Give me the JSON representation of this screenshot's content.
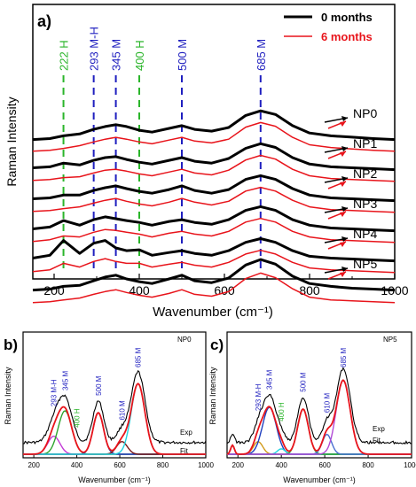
{
  "chart_data": [
    {
      "panel": "a)",
      "type": "line",
      "xlabel": "Wavenumber (cm⁻¹)",
      "ylabel": "Raman Intensity",
      "xlim": [
        150,
        1000
      ],
      "xticks": [
        200,
        400,
        600,
        800,
        1000
      ],
      "legend": {
        "position": "top-right",
        "entries": [
          {
            "name": "0 months",
            "color": "#000000"
          },
          {
            "name": "6 months",
            "color": "#e8141b"
          }
        ]
      },
      "peak_markers": [
        {
          "x": 222,
          "label": "222 H",
          "color": "#2bb52b"
        },
        {
          "x": 293,
          "label": "293 M-H",
          "color": "#1f1fbf"
        },
        {
          "x": 345,
          "label": "345 M",
          "color": "#1f1fbf"
        },
        {
          "x": 400,
          "label": "400 H",
          "color": "#2bb52b"
        },
        {
          "x": 500,
          "label": "500 M",
          "color": "#1f1fbf"
        },
        {
          "x": 685,
          "label": "685 M",
          "color": "#1f1fbf"
        }
      ],
      "samples": [
        "NP0",
        "NP1",
        "NP2",
        "NP3",
        "NP4",
        "NP5"
      ],
      "x": [
        150,
        190,
        222,
        260,
        293,
        320,
        345,
        370,
        400,
        430,
        470,
        500,
        530,
        570,
        610,
        650,
        685,
        720,
        760,
        800,
        850,
        900,
        950,
        1000
      ],
      "series": [
        {
          "sample": "NP0",
          "age": "0 months",
          "values": [
            0.2,
            0.22,
            0.28,
            0.32,
            0.42,
            0.48,
            0.52,
            0.48,
            0.4,
            0.36,
            0.44,
            0.5,
            0.42,
            0.38,
            0.46,
            0.72,
            0.82,
            0.74,
            0.5,
            0.34,
            0.28,
            0.25,
            0.22,
            0.2
          ]
        },
        {
          "sample": "NP0",
          "age": "6 months",
          "values": [
            0.1,
            0.12,
            0.16,
            0.22,
            0.3,
            0.36,
            0.4,
            0.36,
            0.3,
            0.26,
            0.34,
            0.4,
            0.32,
            0.28,
            0.36,
            0.62,
            0.72,
            0.64,
            0.4,
            0.24,
            0.18,
            0.15,
            0.12,
            0.1
          ]
        },
        {
          "sample": "NP1",
          "age": "0 months",
          "values": [
            0.24,
            0.26,
            0.34,
            0.3,
            0.4,
            0.46,
            0.48,
            0.42,
            0.36,
            0.32,
            0.4,
            0.46,
            0.38,
            0.34,
            0.44,
            0.66,
            0.76,
            0.68,
            0.46,
            0.32,
            0.26,
            0.24,
            0.22,
            0.2
          ]
        },
        {
          "sample": "NP1",
          "age": "6 months",
          "values": [
            0.12,
            0.14,
            0.18,
            0.2,
            0.28,
            0.34,
            0.36,
            0.32,
            0.26,
            0.22,
            0.3,
            0.36,
            0.28,
            0.24,
            0.34,
            0.56,
            0.66,
            0.58,
            0.36,
            0.22,
            0.16,
            0.14,
            0.12,
            0.1
          ]
        },
        {
          "sample": "NP2",
          "age": "0 months",
          "values": [
            0.22,
            0.24,
            0.3,
            0.3,
            0.4,
            0.46,
            0.5,
            0.44,
            0.38,
            0.34,
            0.42,
            0.5,
            0.4,
            0.34,
            0.42,
            0.64,
            0.72,
            0.64,
            0.44,
            0.3,
            0.24,
            0.22,
            0.2,
            0.18
          ]
        },
        {
          "sample": "NP2",
          "age": "6 months",
          "values": [
            0.1,
            0.12,
            0.16,
            0.2,
            0.28,
            0.34,
            0.38,
            0.32,
            0.26,
            0.22,
            0.3,
            0.38,
            0.3,
            0.24,
            0.32,
            0.54,
            0.62,
            0.54,
            0.34,
            0.2,
            0.14,
            0.12,
            0.1,
            0.08
          ]
        },
        {
          "sample": "NP3",
          "age": "0 months",
          "values": [
            0.22,
            0.26,
            0.4,
            0.3,
            0.42,
            0.48,
            0.44,
            0.4,
            0.36,
            0.3,
            0.38,
            0.42,
            0.36,
            0.32,
            0.42,
            0.62,
            0.7,
            0.62,
            0.42,
            0.3,
            0.24,
            0.22,
            0.2,
            0.18
          ]
        },
        {
          "sample": "NP3",
          "age": "6 months",
          "values": [
            0.1,
            0.14,
            0.22,
            0.2,
            0.3,
            0.36,
            0.34,
            0.3,
            0.26,
            0.2,
            0.28,
            0.32,
            0.26,
            0.22,
            0.32,
            0.52,
            0.6,
            0.52,
            0.32,
            0.2,
            0.14,
            0.12,
            0.1,
            0.08
          ]
        },
        {
          "sample": "NP4",
          "age": "0 months",
          "values": [
            0.24,
            0.3,
            0.62,
            0.34,
            0.56,
            0.62,
            0.46,
            0.4,
            0.42,
            0.3,
            0.36,
            0.4,
            0.34,
            0.3,
            0.4,
            0.58,
            0.66,
            0.58,
            0.4,
            0.28,
            0.24,
            0.22,
            0.2,
            0.18
          ]
        },
        {
          "sample": "NP4",
          "age": "6 months",
          "values": [
            0.1,
            0.14,
            0.28,
            0.2,
            0.32,
            0.38,
            0.32,
            0.28,
            0.28,
            0.2,
            0.26,
            0.3,
            0.24,
            0.2,
            0.3,
            0.48,
            0.56,
            0.48,
            0.3,
            0.18,
            0.14,
            0.12,
            0.1,
            0.08
          ]
        },
        {
          "sample": "NP5",
          "age": "0 months",
          "values": [
            0.2,
            0.22,
            0.28,
            0.3,
            0.4,
            0.48,
            0.52,
            0.44,
            0.38,
            0.34,
            0.44,
            0.52,
            0.4,
            0.36,
            0.46,
            0.74,
            0.86,
            0.76,
            0.5,
            0.34,
            0.28,
            0.24,
            0.22,
            0.2
          ]
        },
        {
          "sample": "NP5",
          "age": "6 months",
          "values": [
            0.08,
            0.1,
            0.14,
            0.18,
            0.26,
            0.32,
            0.36,
            0.3,
            0.24,
            0.2,
            0.28,
            0.36,
            0.26,
            0.22,
            0.32,
            0.6,
            0.72,
            0.62,
            0.38,
            0.2,
            0.14,
            0.12,
            0.1,
            0.08
          ]
        }
      ]
    },
    {
      "panel": "b)",
      "type": "line",
      "sample": "NP0",
      "xlabel": "Wavenumber (cm⁻¹)",
      "ylabel": "Raman Intensity",
      "xlim": [
        150,
        1000
      ],
      "xticks": [
        200,
        400,
        600,
        800,
        1000
      ],
      "ylim": [
        0,
        1
      ],
      "peak_labels": [
        {
          "x": 293,
          "label": "293 M-H",
          "color": "#1f1fbf"
        },
        {
          "x": 345,
          "label": "345 M",
          "color": "#1f1fbf"
        },
        {
          "x": 400,
          "label": "400 H",
          "color": "#2bb52b"
        },
        {
          "x": 500,
          "label": "500 M",
          "color": "#1f1fbf"
        },
        {
          "x": 610,
          "label": "610 M",
          "color": "#1f1fbf"
        },
        {
          "x": 685,
          "label": "685 M",
          "color": "#1f1fbf"
        }
      ],
      "exp_label": "Exp",
      "fit_label": "Fit",
      "components": [
        {
          "center": 293,
          "height": 0.2,
          "width": 40,
          "color": "#c23ad6"
        },
        {
          "center": 345,
          "height": 0.48,
          "width": 45,
          "color": "#2fa52f"
        },
        {
          "center": 500,
          "height": 0.46,
          "width": 35,
          "color": "#1f3fbf"
        },
        {
          "center": 610,
          "height": 0.14,
          "width": 35,
          "color": "#7a1a1a"
        },
        {
          "center": 685,
          "height": 0.78,
          "width": 45,
          "color": "#22d3e0"
        }
      ]
    },
    {
      "panel": "c)",
      "type": "line",
      "sample": "NP5",
      "xlabel": "Wavenumber (cm⁻¹)",
      "ylabel": "Raman Intensity",
      "xlim": [
        150,
        1000
      ],
      "xticks": [
        200,
        400,
        600,
        800,
        1000
      ],
      "ylim": [
        0,
        1
      ],
      "peak_labels": [
        {
          "x": 293,
          "label": "293 M-H",
          "color": "#1f1fbf"
        },
        {
          "x": 345,
          "label": "345 M",
          "color": "#1f1fbf"
        },
        {
          "x": 400,
          "label": "400 H",
          "color": "#2bb52b"
        },
        {
          "x": 500,
          "label": "500 M",
          "color": "#1f1fbf"
        },
        {
          "x": 610,
          "label": "610 M",
          "color": "#1f1fbf"
        },
        {
          "x": 685,
          "label": "685 M",
          "color": "#1f1fbf"
        }
      ],
      "exp_label": "Exp",
      "fit_label": "Fit",
      "components": [
        {
          "center": 175,
          "height": 0.1,
          "width": 12,
          "color": "#2fa52f"
        },
        {
          "center": 293,
          "height": 0.14,
          "width": 30,
          "color": "#d19a1a"
        },
        {
          "center": 345,
          "height": 0.52,
          "width": 45,
          "color": "#1f3fbf"
        },
        {
          "center": 400,
          "height": 0.06,
          "width": 25,
          "color": "#22d3e0"
        },
        {
          "center": 500,
          "height": 0.5,
          "width": 35,
          "color": "#2fa52f"
        },
        {
          "center": 610,
          "height": 0.22,
          "width": 30,
          "color": "#4a6fd1"
        },
        {
          "center": 685,
          "height": 0.82,
          "width": 45,
          "color": "#b24bd6"
        }
      ]
    }
  ],
  "colors": {
    "exp_0": "#000000",
    "exp_6": "#e8141b",
    "fit": "#e8141b",
    "blue_label": "#1f1fbf",
    "green_label": "#2bb52b"
  }
}
